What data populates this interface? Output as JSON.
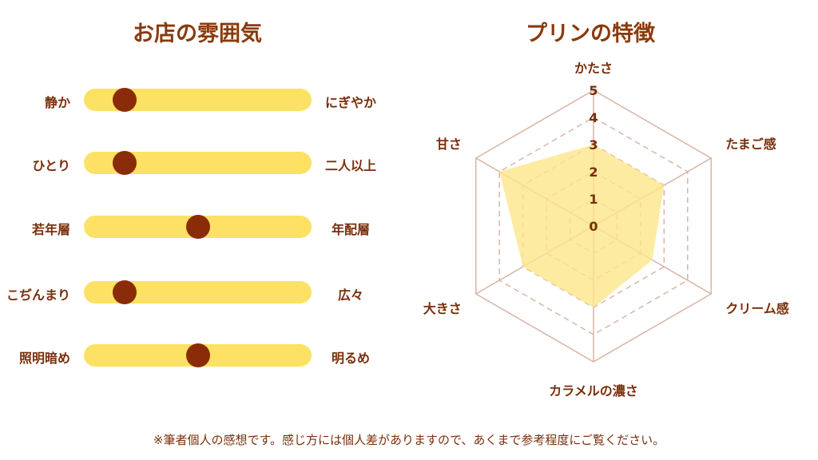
{
  "atmosphere": {
    "title": "お店の雰囲気",
    "sliders": [
      {
        "left": "静か",
        "right": "にぎやか",
        "value": 0.18
      },
      {
        "left": "ひとり",
        "right": "二人以上",
        "value": 0.18
      },
      {
        "left": "若年層",
        "right": "年配層",
        "value": 0.5
      },
      {
        "left": "こぢんまり",
        "right": "広々",
        "value": 0.18
      },
      {
        "left": "照明暗め",
        "right": "明るめ",
        "value": 0.5
      }
    ]
  },
  "chart_data": {
    "type": "radar",
    "title": "プリンの特徴",
    "axes": [
      "かたさ",
      "たまご感",
      "クリーム感",
      "カラメルの濃さ",
      "大きさ",
      "甘さ"
    ],
    "values": [
      3,
      3,
      2.5,
      3,
      3,
      4
    ],
    "range": [
      0,
      5
    ],
    "ticks": [
      "0",
      "1",
      "2",
      "3",
      "4",
      "5"
    ],
    "fill_color": "#fde68a",
    "grid_color": "#d8b4a6"
  },
  "footnote": "※筆者個人の感想です。感じ方には個人差がありますので、あくまで参考程度にご覧ください。"
}
